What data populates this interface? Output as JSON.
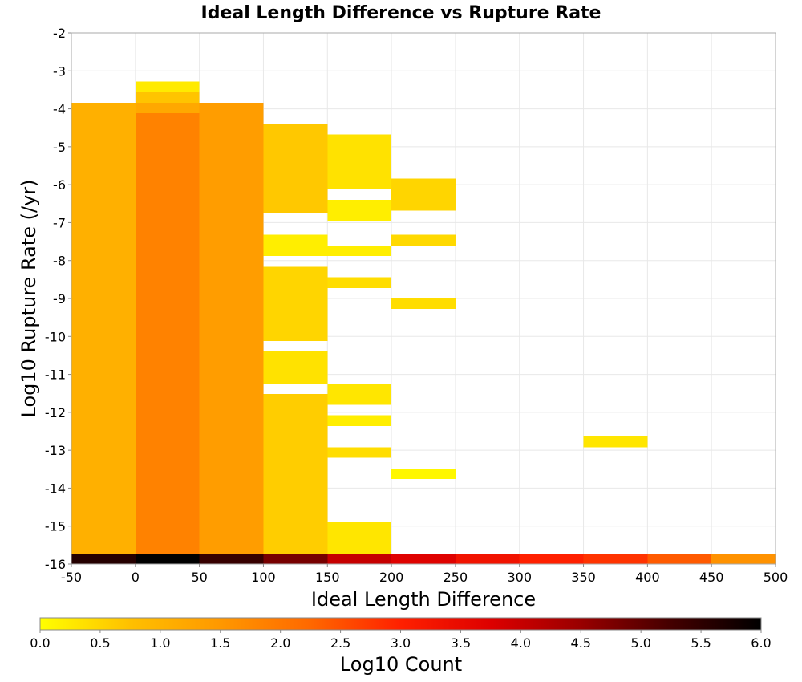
{
  "chart_data": {
    "type": "heatmap",
    "title": "Ideal Length Difference vs Rupture Rate",
    "xlabel": "Ideal Length Difference",
    "ylabel": "Log10 Rupture Rate (/yr)",
    "xlim": [
      -50,
      500
    ],
    "ylim": [
      -16,
      -2
    ],
    "xticks": [
      "-50",
      "0",
      "50",
      "100",
      "150",
      "200",
      "250",
      "300",
      "350",
      "400",
      "450",
      "500"
    ],
    "yticks": [
      "-2",
      "-3",
      "-4",
      "-5",
      "-6",
      "-7",
      "-8",
      "-9",
      "-10",
      "-11",
      "-12",
      "-13",
      "-14",
      "-15",
      "-16"
    ],
    "x_bin_width": 50,
    "y_bin_height": 0.28,
    "cell_value_units": "log10 count",
    "cells": [
      {
        "x": -50,
        "y0": -16.0,
        "y1": -15.72,
        "v": 5.6
      },
      {
        "x": 0,
        "y0": -16.0,
        "y1": -15.72,
        "v": 6.0
      },
      {
        "x": 50,
        "y0": -16.0,
        "y1": -15.72,
        "v": 5.4
      },
      {
        "x": 100,
        "y0": -16.0,
        "y1": -15.72,
        "v": 4.8
      },
      {
        "x": 150,
        "y0": -16.0,
        "y1": -15.72,
        "v": 4.0
      },
      {
        "x": 200,
        "y0": -16.0,
        "y1": -15.72,
        "v": 3.7
      },
      {
        "x": 250,
        "y0": -16.0,
        "y1": -15.72,
        "v": 3.3
      },
      {
        "x": 300,
        "y0": -16.0,
        "y1": -15.72,
        "v": 3.0
      },
      {
        "x": 350,
        "y0": -16.0,
        "y1": -15.72,
        "v": 2.8
      },
      {
        "x": 400,
        "y0": -16.0,
        "y1": -15.72,
        "v": 2.4
      },
      {
        "x": 450,
        "y0": -16.0,
        "y1": -15.72,
        "v": 1.6
      },
      {
        "x": -50,
        "y0": -15.72,
        "y1": -3.84,
        "v": 1.05
      },
      {
        "x": 0,
        "y0": -15.72,
        "y1": -4.12,
        "v": 1.85
      },
      {
        "x": 0,
        "y0": -4.12,
        "y1": -3.84,
        "v": 1.2
      },
      {
        "x": 0,
        "y0": -3.84,
        "y1": -3.56,
        "v": 0.7
      },
      {
        "x": 0,
        "y0": -3.56,
        "y1": -3.28,
        "v": 0.25
      },
      {
        "x": 50,
        "y0": -15.72,
        "y1": -3.84,
        "v": 1.4
      },
      {
        "x": 100,
        "y0": -15.72,
        "y1": -11.52,
        "v": 0.6
      },
      {
        "x": 100,
        "y0": -11.24,
        "y1": -10.4,
        "v": 0.35
      },
      {
        "x": 100,
        "y0": -10.12,
        "y1": -8.16,
        "v": 0.5
      },
      {
        "x": 100,
        "y0": -7.88,
        "y1": -7.32,
        "v": 0.2
      },
      {
        "x": 100,
        "y0": -6.76,
        "y1": -4.4,
        "v": 0.65
      },
      {
        "x": 150,
        "y0": -15.72,
        "y1": -14.88,
        "v": 0.3
      },
      {
        "x": 150,
        "y0": -13.2,
        "y1": -12.92,
        "v": 0.4
      },
      {
        "x": 150,
        "y0": -12.36,
        "y1": -12.08,
        "v": 0.2
      },
      {
        "x": 150,
        "y0": -11.8,
        "y1": -11.24,
        "v": 0.3
      },
      {
        "x": 150,
        "y0": -8.72,
        "y1": -8.44,
        "v": 0.4
      },
      {
        "x": 150,
        "y0": -7.88,
        "y1": -7.6,
        "v": 0.2
      },
      {
        "x": 150,
        "y0": -6.96,
        "y1": -6.4,
        "v": 0.2
      },
      {
        "x": 150,
        "y0": -6.12,
        "y1": -4.68,
        "v": 0.35
      },
      {
        "x": 200,
        "y0": -13.76,
        "y1": -13.48,
        "v": 0.1
      },
      {
        "x": 200,
        "y0": -9.28,
        "y1": -9.0,
        "v": 0.4
      },
      {
        "x": 200,
        "y0": -7.6,
        "y1": -7.32,
        "v": 0.45
      },
      {
        "x": 200,
        "y0": -6.68,
        "y1": -5.84,
        "v": 0.5
      },
      {
        "x": 350,
        "y0": -12.92,
        "y1": -12.64,
        "v": 0.3
      }
    ],
    "colorbar": {
      "label": "Log10 Count",
      "range": [
        0.0,
        6.0
      ],
      "ticks": [
        "0.0",
        "0.5",
        "1.0",
        "1.5",
        "2.0",
        "2.5",
        "3.0",
        "3.5",
        "4.0",
        "4.5",
        "5.0",
        "5.5",
        "6.0"
      ],
      "colors": [
        "#ffff00",
        "#ffc000",
        "#ff9800",
        "#ff6800",
        "#ff2000",
        "#dd0000",
        "#990000",
        "#440000",
        "#000000"
      ]
    },
    "grid": true,
    "legend": "bottom"
  }
}
